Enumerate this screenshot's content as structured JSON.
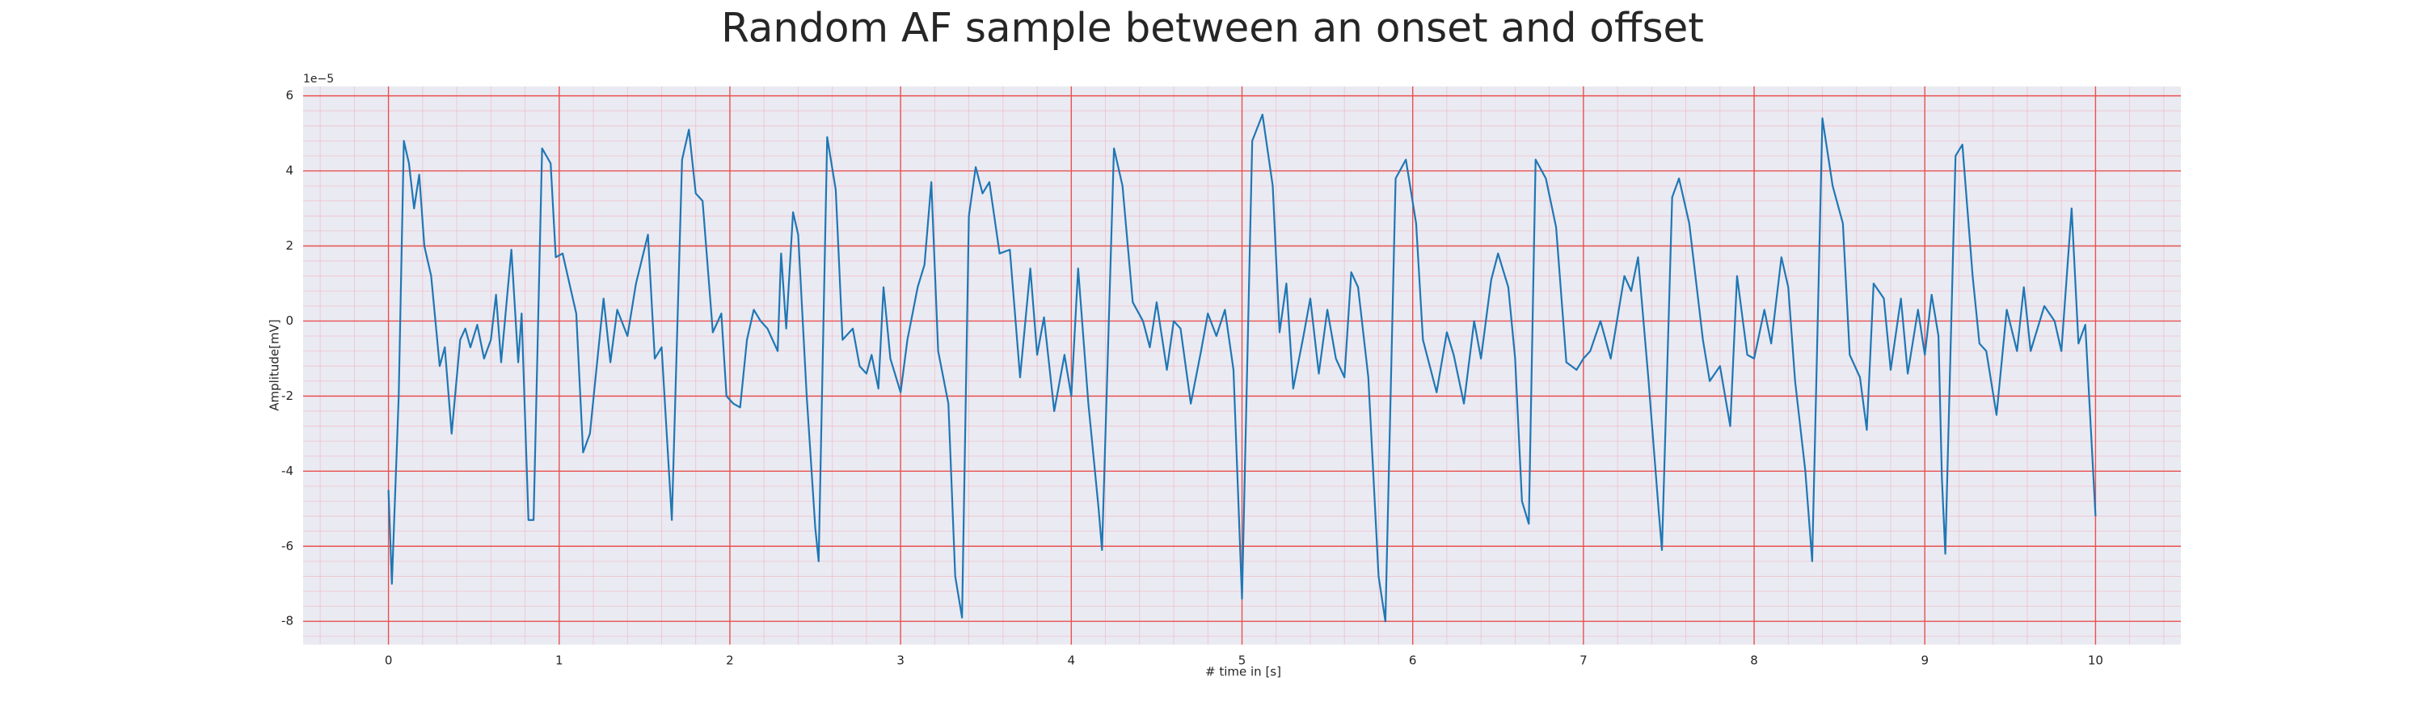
{
  "chart_data": {
    "type": "line",
    "title": "Random AF sample between an onset and offset",
    "x_label": "# time in [s]",
    "y_label": "Amplitude[mV]",
    "y_offset_label": "1e−5",
    "xlim": [
      -0.5,
      10.5
    ],
    "ylim": [
      -8.62,
      6.25
    ],
    "xticks": [
      0,
      1,
      2,
      3,
      4,
      5,
      6,
      7,
      8,
      9,
      10
    ],
    "yticks": [
      -8,
      -6,
      -4,
      -2,
      0,
      2,
      4,
      6
    ],
    "grid": true,
    "minor_grid": true,
    "x": [
      0,
      0.02,
      0.06,
      0.09,
      0.12,
      0.15,
      0.18,
      0.21,
      0.25,
      0.3,
      0.33,
      0.37,
      0.42,
      0.45,
      0.48,
      0.52,
      0.56,
      0.6,
      0.63,
      0.66,
      0.72,
      0.76,
      0.78,
      0.82,
      0.85,
      0.9,
      0.95,
      0.98,
      1.02,
      1.06,
      1.1,
      1.14,
      1.18,
      1.22,
      1.26,
      1.3,
      1.34,
      1.4,
      1.45,
      1.52,
      1.56,
      1.6,
      1.66,
      1.72,
      1.76,
      1.8,
      1.84,
      1.9,
      1.95,
      1.98,
      2.02,
      2.06,
      2.1,
      2.14,
      2.18,
      2.22,
      2.28,
      2.3,
      2.33,
      2.37,
      2.4,
      2.45,
      2.5,
      2.52,
      2.57,
      2.62,
      2.66,
      2.72,
      2.76,
      2.8,
      2.83,
      2.87,
      2.9,
      2.94,
      3.0,
      3.04,
      3.1,
      3.14,
      3.18,
      3.22,
      3.28,
      3.32,
      3.36,
      3.4,
      3.44,
      3.48,
      3.52,
      3.58,
      3.64,
      3.7,
      3.76,
      3.8,
      3.84,
      3.9,
      3.96,
      4.0,
      4.04,
      4.1,
      4.16,
      4.18,
      4.25,
      4.3,
      4.36,
      4.42,
      4.46,
      4.5,
      4.56,
      4.6,
      4.64,
      4.7,
      4.76,
      4.8,
      4.85,
      4.9,
      4.95,
      5.0,
      5.06,
      5.12,
      5.18,
      5.22,
      5.26,
      5.3,
      5.36,
      5.4,
      5.45,
      5.5,
      5.55,
      5.6,
      5.64,
      5.68,
      5.74,
      5.8,
      5.84,
      5.9,
      5.96,
      6.02,
      6.06,
      6.1,
      6.14,
      6.2,
      6.24,
      6.3,
      6.36,
      6.4,
      6.46,
      6.5,
      6.56,
      6.6,
      6.64,
      6.68,
      6.72,
      6.78,
      6.84,
      6.9,
      6.96,
      7.0,
      7.04,
      7.1,
      7.16,
      7.24,
      7.28,
      7.32,
      7.38,
      7.44,
      7.46,
      7.52,
      7.56,
      7.62,
      7.7,
      7.74,
      7.8,
      7.86,
      7.9,
      7.96,
      8.0,
      8.06,
      8.1,
      8.16,
      8.2,
      8.24,
      8.3,
      8.34,
      8.4,
      8.46,
      8.52,
      8.56,
      8.62,
      8.66,
      8.7,
      8.76,
      8.8,
      8.86,
      8.9,
      8.96,
      9.0,
      9.04,
      9.08,
      9.1,
      9.12,
      9.18,
      9.22,
      9.28,
      9.32,
      9.36,
      9.42,
      9.48,
      9.54,
      9.58,
      9.62,
      9.7,
      9.76,
      9.8,
      9.86,
      9.9,
      9.94,
      10.0
    ],
    "series": [
      {
        "color": "#1f77b4",
        "values": [
          -4.5,
          -7.0,
          -2.0,
          4.8,
          4.2,
          3.0,
          3.9,
          2.0,
          1.2,
          -1.2,
          -0.7,
          -3.0,
          -0.5,
          -0.2,
          -0.7,
          -0.1,
          -1.0,
          -0.5,
          0.7,
          -1.1,
          1.9,
          -1.1,
          0.2,
          -5.3,
          -5.3,
          4.6,
          4.2,
          1.7,
          1.8,
          1.0,
          0.2,
          -3.5,
          -3.0,
          -1.2,
          0.6,
          -1.1,
          0.3,
          -0.4,
          1.0,
          2.3,
          -1.0,
          -0.7,
          -5.3,
          4.3,
          5.1,
          3.4,
          3.2,
          -0.3,
          0.2,
          -2.0,
          -2.2,
          -2.3,
          -0.5,
          0.3,
          0.0,
          -0.2,
          -0.8,
          1.8,
          -0.2,
          2.9,
          2.3,
          -2.0,
          -5.5,
          -6.4,
          4.9,
          3.5,
          -0.5,
          -0.2,
          -1.2,
          -1.4,
          -0.9,
          -1.8,
          0.9,
          -1.0,
          -1.9,
          -0.5,
          0.9,
          1.5,
          3.7,
          -0.8,
          -2.2,
          -6.8,
          -7.9,
          2.8,
          4.1,
          3.4,
          3.7,
          1.8,
          1.9,
          -1.5,
          1.4,
          -0.9,
          0.1,
          -2.4,
          -0.9,
          -2.0,
          1.4,
          -2.2,
          -5.0,
          -6.1,
          4.6,
          3.6,
          0.5,
          0.0,
          -0.7,
          0.5,
          -1.3,
          0.0,
          -0.2,
          -2.2,
          -0.8,
          0.2,
          -0.4,
          0.3,
          -1.3,
          -7.4,
          4.8,
          5.5,
          3.6,
          -0.3,
          1.0,
          -1.8,
          -0.4,
          0.6,
          -1.4,
          0.3,
          -1.0,
          -1.5,
          1.3,
          0.9,
          -1.5,
          -6.8,
          -8.0,
          3.8,
          4.3,
          2.6,
          -0.5,
          -1.2,
          -1.9,
          -0.3,
          -0.9,
          -2.2,
          0.0,
          -1.0,
          1.1,
          1.8,
          0.9,
          -1.0,
          -4.8,
          -5.4,
          4.3,
          3.8,
          2.5,
          -1.1,
          -1.3,
          -1.0,
          -0.8,
          0.0,
          -1.0,
          1.2,
          0.8,
          1.7,
          -1.5,
          -5.0,
          -6.1,
          3.3,
          3.8,
          2.6,
          -0.5,
          -1.6,
          -1.2,
          -2.8,
          1.2,
          -0.9,
          -1.0,
          0.3,
          -0.6,
          1.7,
          0.9,
          -1.6,
          -4.0,
          -6.4,
          5.4,
          3.6,
          2.6,
          -0.9,
          -1.5,
          -2.9,
          1.0,
          0.6,
          -1.3,
          0.6,
          -1.4,
          0.3,
          -0.9,
          0.7,
          -0.4,
          -4.2,
          -6.2,
          4.4,
          4.7,
          1.2,
          -0.6,
          -0.8,
          -2.5,
          0.3,
          -0.8,
          0.9,
          -0.8,
          0.4,
          0.0,
          -0.8,
          3.0,
          -0.6,
          -0.1,
          -5.2
        ]
      }
    ]
  }
}
